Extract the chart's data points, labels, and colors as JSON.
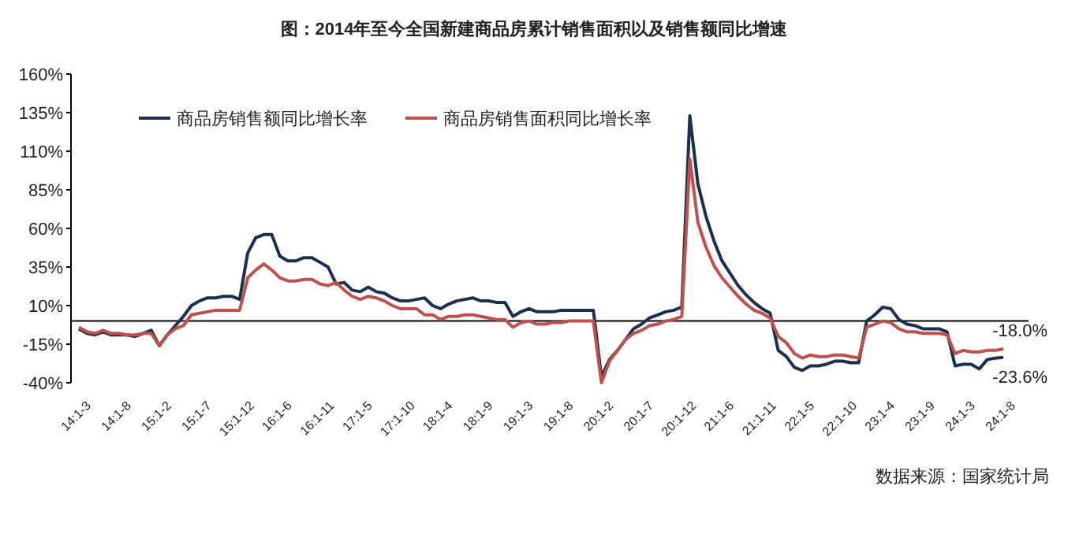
{
  "chart_data": {
    "type": "line",
    "title": "图：2014年至今全国新建商品房累计销售面积以及销售额同比增速",
    "categories": [
      "14:1-3",
      null,
      null,
      null,
      null,
      "14:1-8",
      null,
      null,
      null,
      null,
      "15:1-2",
      null,
      null,
      null,
      null,
      "15:1-7",
      null,
      null,
      null,
      null,
      "15:1-12",
      null,
      null,
      null,
      null,
      "16:1-6",
      null,
      null,
      null,
      null,
      "16:1-11",
      null,
      null,
      null,
      null,
      "17:1-5",
      null,
      null,
      null,
      null,
      "17:1-10",
      null,
      null,
      null,
      null,
      "18:1-4",
      null,
      null,
      null,
      null,
      "18:1-9",
      null,
      null,
      null,
      null,
      "19:1-3",
      null,
      null,
      null,
      null,
      "19:1-8",
      null,
      null,
      null,
      null,
      "20:1-2",
      null,
      null,
      null,
      null,
      "20:1-7",
      null,
      null,
      null,
      null,
      "20:1-12",
      null,
      null,
      null,
      null,
      "21:1-6",
      null,
      null,
      null,
      null,
      "21:1-11",
      null,
      null,
      null,
      null,
      "22:1-5",
      null,
      null,
      null,
      null,
      "22:1-10",
      null,
      null,
      null,
      null,
      "23:1-4",
      null,
      null,
      null,
      null,
      "23:1-9",
      null,
      null,
      null,
      null,
      "24:1-3",
      null,
      null,
      null,
      null,
      "24:1-8"
    ],
    "series": [
      {
        "name": "商品房销售额同比增长率",
        "color": "#1b2f4f",
        "values": [
          -5,
          -8,
          -9,
          -7,
          -9,
          -9,
          -9,
          -10,
          -8,
          -6,
          -16,
          -9,
          -3,
          3,
          10,
          13,
          15,
          15,
          16,
          16,
          14,
          44,
          54,
          56,
          56,
          42,
          39,
          39,
          41,
          41,
          38,
          35,
          24,
          25,
          20,
          19,
          22,
          19,
          18,
          15,
          13,
          13,
          14,
          15,
          10,
          8,
          11,
          13,
          14,
          15,
          13,
          13,
          12,
          12,
          3,
          6,
          8,
          6,
          6,
          6,
          7,
          7,
          7,
          7,
          7,
          -36,
          -25,
          -19,
          -12,
          -5,
          -2,
          2,
          4,
          6,
          7,
          9,
          133,
          89,
          68,
          52,
          39,
          31,
          23,
          17,
          12,
          8,
          5,
          -19,
          -23,
          -30,
          -32,
          -29,
          -29,
          -28,
          -26,
          -26,
          -27,
          -27,
          0,
          4,
          9,
          8,
          1,
          -2,
          -3,
          -5,
          -5,
          -5,
          -7,
          -29,
          -28,
          -28,
          -31,
          -25,
          -24,
          -23.6
        ]
      },
      {
        "name": "商品房销售面积同比增长率",
        "color": "#c0504d",
        "values": [
          -4,
          -7,
          -8,
          -6,
          -8,
          -8,
          -9,
          -9,
          -8,
          -8,
          -16,
          -9,
          -5,
          -3,
          4,
          5,
          6,
          7,
          7,
          7,
          7,
          28,
          33,
          37,
          33,
          28,
          26,
          26,
          27,
          27,
          24,
          23,
          25,
          20,
          16,
          14,
          16,
          15,
          13,
          10,
          8,
          8,
          8,
          4,
          4,
          1,
          3,
          3,
          4,
          4,
          3,
          2,
          1,
          1,
          -4,
          -1,
          0,
          -2,
          -2,
          -1,
          -1,
          0,
          0,
          0,
          0,
          -40,
          -26,
          -19,
          -12,
          -8,
          -6,
          -3,
          -2,
          0,
          1,
          3,
          105,
          64,
          48,
          36,
          28,
          22,
          16,
          11,
          7,
          5,
          2,
          -10,
          -14,
          -21,
          -24,
          -22,
          -23,
          -23,
          -22,
          -22,
          -23,
          -24,
          -4,
          -2,
          0,
          -1,
          -5,
          -7,
          -7,
          -8,
          -8,
          -8,
          -9,
          -21,
          -19,
          -20,
          -20,
          -19,
          -19,
          -18.0
        ]
      }
    ],
    "ylim": [
      -40,
      160
    ],
    "yticks": [
      {
        "value": -40,
        "label": "-40%"
      },
      {
        "value": -15,
        "label": "-15%"
      },
      {
        "value": 10,
        "label": "10%"
      },
      {
        "value": 35,
        "label": "35%"
      },
      {
        "value": 60,
        "label": "60%"
      },
      {
        "value": 85,
        "label": "85%"
      },
      {
        "value": 110,
        "label": "110%"
      },
      {
        "value": 135,
        "label": "135%"
      },
      {
        "value": 160,
        "label": "160%"
      }
    ],
    "ref_lines": [
      {
        "axis": "y",
        "value": 0,
        "color": "#000000"
      }
    ],
    "legend": "top",
    "grid": false,
    "annotations": [
      {
        "text": "-18.0%",
        "x": "24:1-8",
        "y": -18.0
      },
      {
        "text": "-23.6%",
        "x": "24:1-8",
        "y": -23.6
      },
      "数据来源：国家统计局"
    ]
  }
}
